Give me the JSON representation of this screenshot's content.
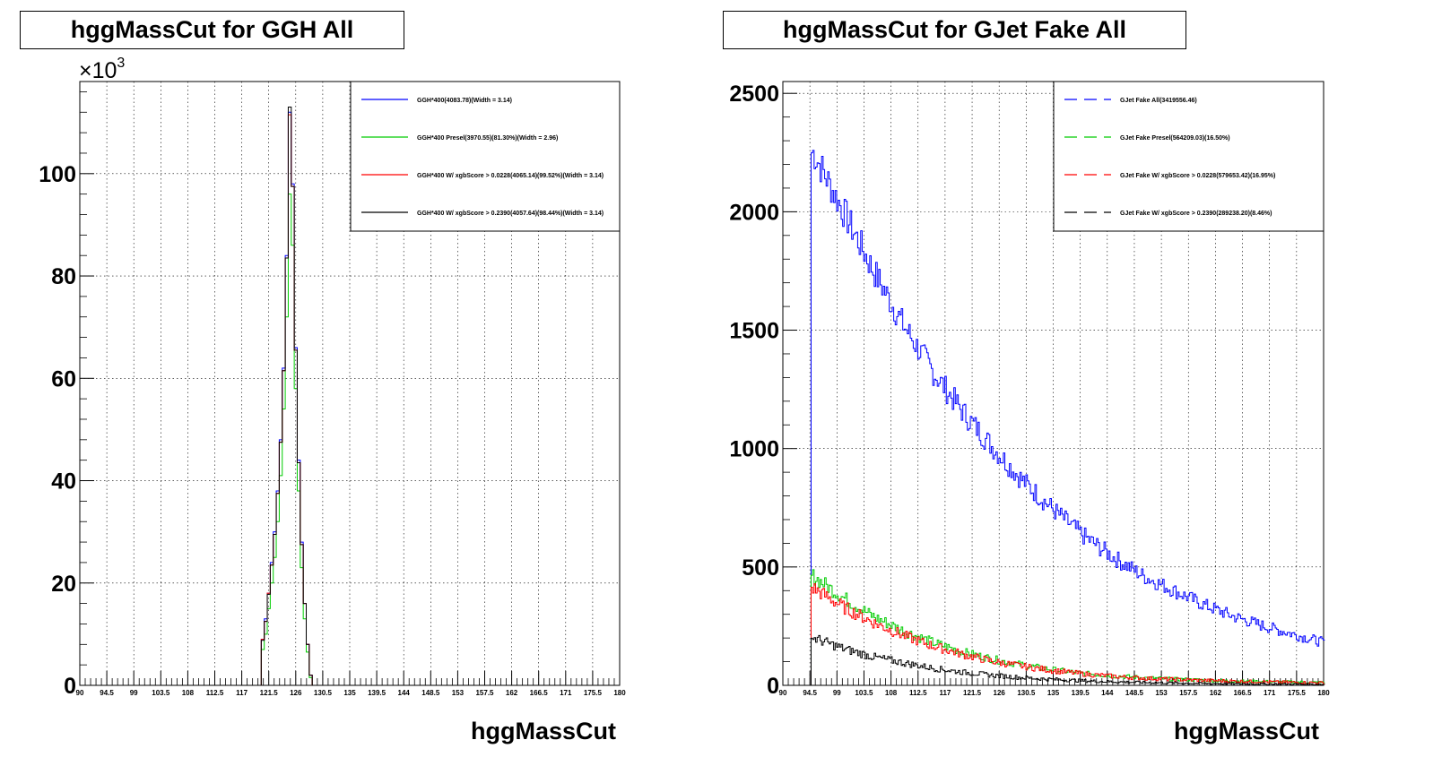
{
  "charts": [
    {
      "title": "hggMassCut for GGH All",
      "xlabel": "hggMassCut",
      "exponent_label": "×10",
      "exponent_sup": "3",
      "legend": [
        {
          "label": "GGH*400(4083.78)(Width = 3.14)",
          "color": "#0000ff",
          "style": "solid"
        },
        {
          "label": "GGH*400 Presel(3970.55)(81.30%)(Width = 2.96)",
          "color": "#00cc00",
          "style": "solid"
        },
        {
          "label": "GGH*400 W/ xgbScore > 0.0228(4065.14)(99.52%)(Width = 3.14)",
          "color": "#ff0000",
          "style": "solid"
        },
        {
          "label": "GGH*400 W/ xgbScore > 0.2390(4057.64)(98.44%)(Width = 3.14)",
          "color": "#000000",
          "style": "solid"
        }
      ]
    },
    {
      "title": "hggMassCut for GJet Fake All",
      "xlabel": "hggMassCut",
      "legend": [
        {
          "label": "GJet Fake All(3419556.46)",
          "color": "#0000ff",
          "style": "dashed"
        },
        {
          "label": "GJet Fake Presel(564209.03)(16.50%)",
          "color": "#00cc00",
          "style": "dashed"
        },
        {
          "label": "GJet Fake W/ xgbScore > 0.0228(579653.42)(16.95%)",
          "color": "#ff0000",
          "style": "dashed"
        },
        {
          "label": "GJet Fake W/ xgbScore > 0.2390(289238.20)(8.46%)",
          "color": "#000000",
          "style": "dashed"
        }
      ]
    }
  ],
  "chart_data": [
    {
      "type": "line",
      "title": "hggMassCut for GGH All",
      "xlabel": "hggMassCut",
      "ylabel": "",
      "xlim": [
        90,
        180
      ],
      "ylim": [
        0,
        118000
      ],
      "x_ticks": [
        "90",
        "94.5",
        "99",
        "103.5",
        "108",
        "112.5",
        "117",
        "121.5",
        "126",
        "130.5",
        "135",
        "139.5",
        "144",
        "148.5",
        "153",
        "157.5",
        "162",
        "166.5",
        "171",
        "175.5",
        "180"
      ],
      "y_ticks": [
        {
          "value": 0,
          "label": "0"
        },
        {
          "value": 20000,
          "label": "20"
        },
        {
          "value": 40000,
          "label": "40"
        },
        {
          "value": 60000,
          "label": "60"
        },
        {
          "value": 80000,
          "label": "80"
        },
        {
          "value": 100000,
          "label": "100"
        }
      ],
      "grid": true,
      "legend_position": "top-right",
      "x": [
        120,
        120.5,
        121,
        121.5,
        122,
        122.5,
        123,
        123.5,
        124,
        124.5,
        125,
        125.5,
        126,
        126.5,
        127,
        127.5,
        128,
        128.5,
        129
      ],
      "series": [
        {
          "name": "GGH*400(4083.78)(Width = 3.14)",
          "color": "#0000ff",
          "values": [
            0,
            9000,
            13000,
            18000,
            24000,
            30000,
            38000,
            48000,
            62000,
            84000,
            112000,
            98000,
            66000,
            44000,
            28000,
            16000,
            8000,
            2000,
            0
          ]
        },
        {
          "name": "GGH*400 Presel(3970.55)(81.30%)(Width = 2.96)",
          "color": "#00cc00",
          "values": [
            0,
            7000,
            10000,
            15000,
            20000,
            25000,
            32000,
            41000,
            54000,
            72000,
            96000,
            86000,
            58000,
            38000,
            23000,
            13000,
            6500,
            1500,
            0
          ]
        },
        {
          "name": "GGH*400 W/ xgbScore > 0.0228(4065.14)(99.52%)(Width = 3.14)",
          "color": "#ff0000",
          "values": [
            0,
            9000,
            12500,
            18000,
            23500,
            29500,
            37500,
            47500,
            61500,
            83500,
            111500,
            97500,
            65500,
            43500,
            27500,
            16000,
            8000,
            2000,
            0
          ]
        },
        {
          "name": "GGH*400 W/ xgbScore > 0.2390(4057.64)(98.44%)(Width = 3.14)",
          "color": "#000000",
          "values": [
            0,
            8800,
            12500,
            17800,
            23500,
            29500,
            37500,
            47500,
            61500,
            83500,
            113000,
            97500,
            65500,
            43500,
            27500,
            16000,
            8000,
            2000,
            0
          ]
        }
      ]
    },
    {
      "type": "line",
      "title": "hggMassCut for GJet Fake All",
      "xlabel": "hggMassCut",
      "ylabel": "",
      "xlim": [
        90,
        180
      ],
      "ylim": [
        0,
        2550
      ],
      "x_ticks": [
        "90",
        "94.5",
        "99",
        "103.5",
        "108",
        "112.5",
        "117",
        "121.5",
        "126",
        "130.5",
        "135",
        "139.5",
        "144",
        "148.5",
        "153",
        "157.5",
        "162",
        "166.5",
        "171",
        "175.5",
        "180"
      ],
      "y_ticks": [
        {
          "value": 0,
          "label": "0"
        },
        {
          "value": 500,
          "label": "500"
        },
        {
          "value": 1000,
          "label": "1000"
        },
        {
          "value": 1500,
          "label": "1500"
        },
        {
          "value": 2000,
          "label": "2000"
        },
        {
          "value": 2500,
          "label": "2500"
        }
      ],
      "grid": true,
      "legend_position": "top-right",
      "x": [
        95,
        100,
        105,
        110,
        115,
        120,
        125,
        130,
        135,
        140,
        145,
        150,
        155,
        160,
        165,
        170,
        175,
        180
      ],
      "series": [
        {
          "name": "GJet Fake All(3419556.46)",
          "color": "#0000ff",
          "values": [
            2250,
            2000,
            1750,
            1520,
            1320,
            1150,
            1000,
            860,
            740,
            630,
            540,
            460,
            400,
            340,
            290,
            250,
            215,
            180
          ]
        },
        {
          "name": "GJet Fake Presel(564209.03)(16.50%)",
          "color": "#00cc00",
          "values": [
            460,
            370,
            290,
            230,
            180,
            140,
            110,
            85,
            65,
            50,
            40,
            32,
            26,
            22,
            18,
            16,
            14,
            12
          ]
        },
        {
          "name": "GJet Fake W/ xgbScore > 0.0228(579653.42)(16.95%)",
          "color": "#ff0000",
          "values": [
            410,
            330,
            265,
            210,
            165,
            130,
            100,
            80,
            62,
            48,
            38,
            30,
            25,
            21,
            18,
            15,
            13,
            11
          ]
        },
        {
          "name": "GJet Fake W/ xgbScore > 0.2390(289238.20)(8.46%)",
          "color": "#000000",
          "values": [
            200,
            155,
            120,
            95,
            72,
            55,
            42,
            32,
            25,
            19,
            15,
            12,
            10,
            8,
            7,
            6,
            5,
            4
          ]
        }
      ]
    }
  ]
}
